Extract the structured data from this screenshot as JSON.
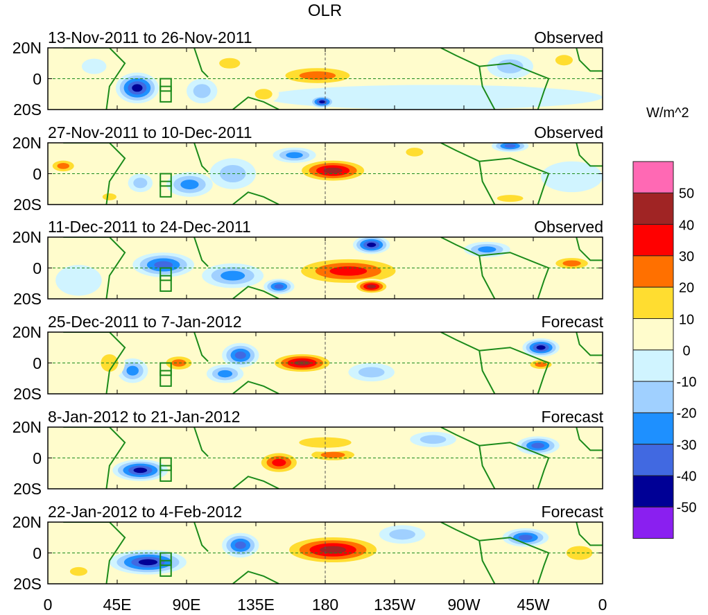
{
  "title": "OLR",
  "units": "W/m^2",
  "x_ticks": [
    {
      "lon": 0,
      "label": "0"
    },
    {
      "lon": 45,
      "label": "45E"
    },
    {
      "lon": 90,
      "label": "90E"
    },
    {
      "lon": 135,
      "label": "135E"
    },
    {
      "lon": 180,
      "label": "180"
    },
    {
      "lon": 225,
      "label": "135W"
    },
    {
      "lon": 270,
      "label": "90W"
    },
    {
      "lon": 315,
      "label": "45W"
    },
    {
      "lon": 360,
      "label": "0"
    }
  ],
  "y_ticks": [
    {
      "lat": 20,
      "label": "20N"
    },
    {
      "lat": 0,
      "label": "0"
    },
    {
      "lat": -20,
      "label": "20S"
    }
  ],
  "colorbar": {
    "labels": [
      "50",
      "40",
      "30",
      "20",
      "10",
      "0",
      "-10",
      "-20",
      "-30",
      "-40",
      "-50"
    ],
    "colors": [
      "#ff69b4",
      "#a02424",
      "#ff0000",
      "#ff7000",
      "#ffdd30",
      "#fffccc",
      "#d0f4ff",
      "#a0d0ff",
      "#1e90ff",
      "#4169e1",
      "#000096",
      "#8a1ff0"
    ]
  },
  "chart_data": {
    "type": "heatmap",
    "variable": "OLR anomaly",
    "lon_range": [
      0,
      360
    ],
    "lat_range": [
      -20,
      20
    ],
    "panels": [
      {
        "label": "13-Nov-2011 to 26-Nov-2011",
        "kind": "Observed",
        "anomalies": [
          [
            250,
            -12,
            110,
            8,
            -8
          ],
          [
            58,
            -6,
            14,
            10,
            -45
          ],
          [
            100,
            -8,
            10,
            8,
            -20
          ],
          [
            118,
            10,
            12,
            6,
            20
          ],
          [
            175,
            2,
            30,
            7,
            25
          ],
          [
            178,
            -15,
            8,
            4,
            -45
          ],
          [
            300,
            8,
            15,
            8,
            -20
          ],
          [
            335,
            12,
            10,
            6,
            15
          ],
          [
            140,
            -10,
            10,
            6,
            20
          ],
          [
            30,
            8,
            8,
            5,
            -10
          ]
        ]
      },
      {
        "label": "27-Nov-2011 to 10-Dec-2011",
        "kind": "Observed",
        "anomalies": [
          [
            10,
            5,
            10,
            5,
            30
          ],
          [
            40,
            -15,
            8,
            4,
            15
          ],
          [
            92,
            -7,
            15,
            8,
            -30
          ],
          [
            60,
            -6,
            8,
            6,
            -20
          ],
          [
            185,
            2,
            25,
            8,
            42
          ],
          [
            160,
            12,
            14,
            5,
            -30
          ],
          [
            238,
            14,
            10,
            5,
            20
          ],
          [
            300,
            18,
            12,
            4,
            -40
          ],
          [
            300,
            -16,
            15,
            4,
            20
          ],
          [
            340,
            -2,
            20,
            10,
            -5
          ],
          [
            120,
            0,
            15,
            10,
            -20
          ]
        ]
      },
      {
        "label": "11-Dec-2011 to 24-Dec-2011",
        "kind": "Observed",
        "anomalies": [
          [
            75,
            2,
            20,
            8,
            -40
          ],
          [
            120,
            -5,
            20,
            8,
            -30
          ],
          [
            195,
            -2,
            40,
            10,
            40
          ],
          [
            210,
            -12,
            12,
            5,
            45
          ],
          [
            210,
            15,
            12,
            6,
            -45
          ],
          [
            340,
            3,
            15,
            5,
            30
          ],
          [
            285,
            12,
            15,
            5,
            -25
          ],
          [
            20,
            -8,
            15,
            10,
            -10
          ],
          [
            150,
            -12,
            10,
            5,
            -35
          ]
        ]
      },
      {
        "label": "25-Dec-2011 to 7-Jan-2012",
        "kind": "Forecast",
        "anomalies": [
          [
            85,
            0,
            12,
            6,
            25
          ],
          [
            125,
            5,
            12,
            8,
            -40
          ],
          [
            165,
            0,
            22,
            7,
            42
          ],
          [
            55,
            -5,
            10,
            8,
            -25
          ],
          [
            115,
            -7,
            12,
            6,
            -25
          ],
          [
            210,
            -6,
            15,
            6,
            -20
          ],
          [
            320,
            10,
            12,
            6,
            -45
          ],
          [
            320,
            -1,
            10,
            4,
            25
          ],
          [
            40,
            0,
            10,
            10,
            15
          ],
          [
            250,
            5,
            30,
            8,
            10
          ]
        ]
      },
      {
        "label": "8-Jan-2012 to 21-Jan-2012",
        "kind": "Forecast",
        "anomalies": [
          [
            60,
            -8,
            18,
            7,
            -45
          ],
          [
            150,
            -3,
            15,
            8,
            40
          ],
          [
            185,
            2,
            20,
            5,
            30
          ],
          [
            180,
            10,
            30,
            6,
            15
          ],
          [
            318,
            8,
            14,
            6,
            -40
          ],
          [
            250,
            12,
            15,
            5,
            -15
          ],
          [
            20,
            -5,
            15,
            8,
            10
          ]
        ]
      },
      {
        "label": "22-Jan-2012 to 4-Feb-2012",
        "kind": "Forecast",
        "anomalies": [
          [
            65,
            -6,
            25,
            8,
            -45
          ],
          [
            125,
            5,
            12,
            8,
            -40
          ],
          [
            185,
            2,
            35,
            10,
            42
          ],
          [
            230,
            12,
            15,
            6,
            -20
          ],
          [
            310,
            10,
            15,
            6,
            -40
          ],
          [
            345,
            0,
            15,
            8,
            15
          ],
          [
            270,
            -8,
            25,
            8,
            10
          ],
          [
            20,
            -12,
            10,
            5,
            15
          ]
        ]
      }
    ]
  }
}
